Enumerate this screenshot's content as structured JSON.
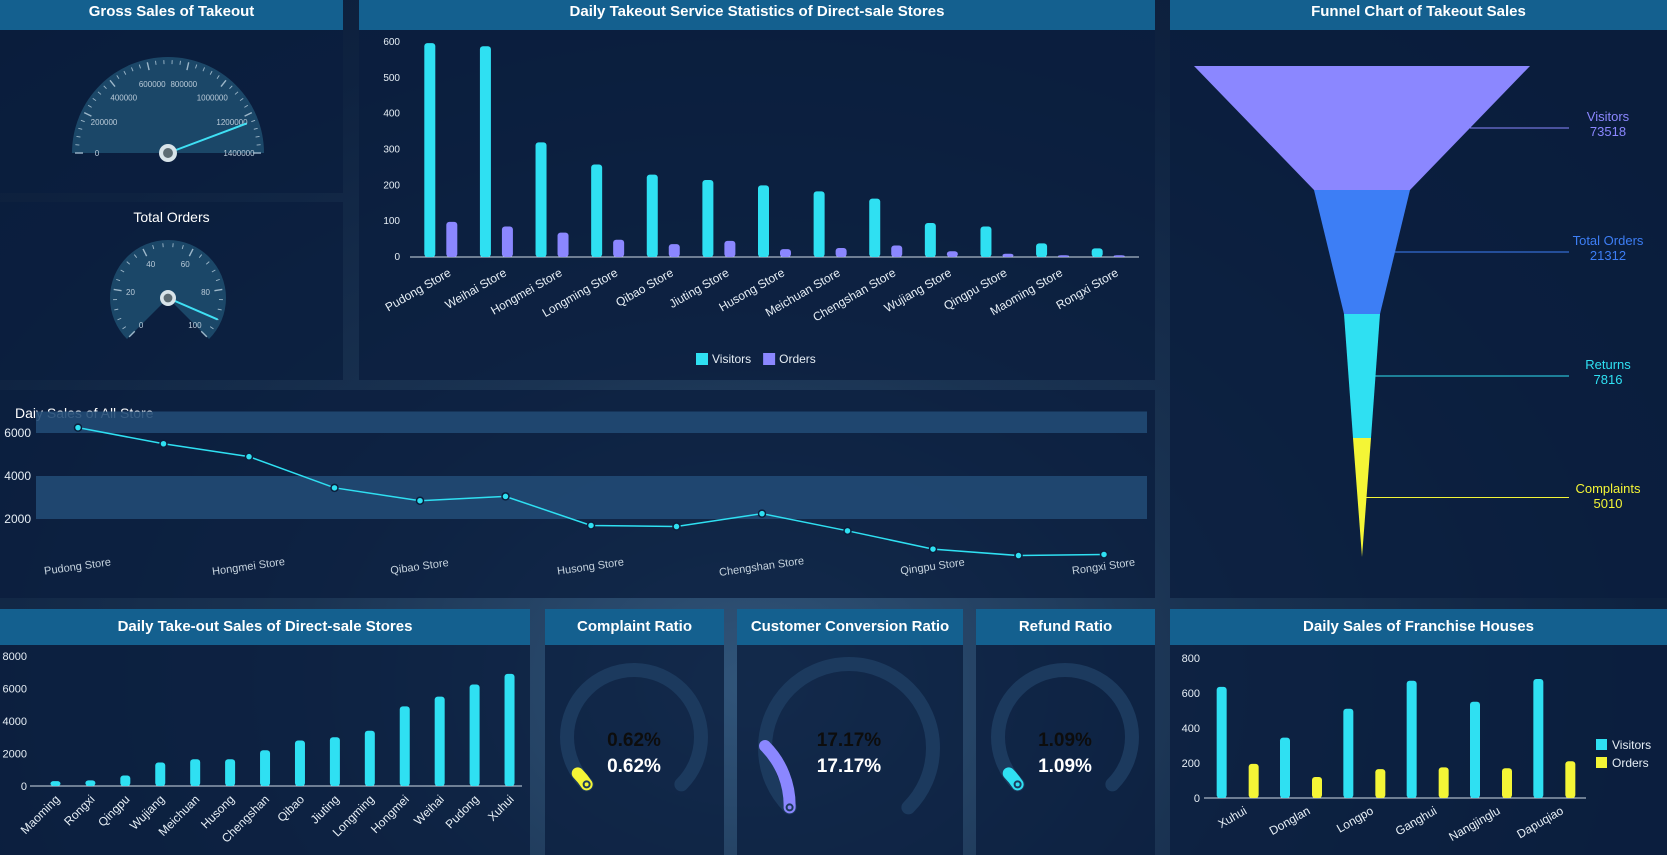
{
  "panels": {
    "gross_sales": {
      "title": "Gross Sales of Takeout"
    },
    "total_orders": {
      "title": "Total Orders"
    },
    "daily_stats": {
      "title": "Daily Takeout Service Statistics of Direct-sale Stores"
    },
    "funnel": {
      "title": "Funnel Chart of Takeout Sales"
    },
    "daily_all": {
      "title": "Daiy Sales of All Store"
    },
    "takeout_sales": {
      "title": "Daily Take-out Sales of Direct-sale Stores"
    },
    "complaint": {
      "title": "Complaint Ratio"
    },
    "conversion": {
      "title": "Customer Conversion Ratio"
    },
    "refund": {
      "title": "Refund Ratio"
    },
    "franchise": {
      "title": "Daily Sales of Franchise Houses"
    }
  },
  "colors": {
    "cyan": "#2fe0f2",
    "purple": "#8b87ff",
    "blue": "#3d7ef5",
    "yellow": "#f4f536",
    "panel": "#0b1e3c",
    "header": "#14608f"
  },
  "chart_data": [
    {
      "id": "gross_sales_gauge",
      "type": "gauge",
      "min": 0,
      "max": 1400000,
      "ticks": [
        "0",
        "200000",
        "400000",
        "600000",
        "800000",
        "1000000",
        "1200000",
        "1400000"
      ],
      "value": 1240000
    },
    {
      "id": "total_orders_gauge",
      "type": "gauge",
      "min": 0,
      "max": 100,
      "ticks": [
        "0",
        "20",
        "40",
        "60",
        "80",
        "100"
      ],
      "value": 92
    },
    {
      "id": "daily_service_stats",
      "type": "bar",
      "categories": [
        "Pudong Store",
        "Weihai Store",
        "Hongmei Store",
        "Longming Store",
        "Qibao Store",
        "Jiuting Store",
        "Husong Store",
        "Meichuan Store",
        "Chengshan Store",
        "Wujiang Store",
        "Qingpu Store",
        "Maoming Store",
        "Rongxi Store"
      ],
      "series": [
        {
          "name": "Visitors",
          "color": "#2fe0f2",
          "values": [
            597,
            588,
            320,
            258,
            230,
            215,
            200,
            183,
            163,
            95,
            85,
            38,
            24
          ]
        },
        {
          "name": "Orders",
          "color": "#8b87ff",
          "values": [
            98,
            85,
            68,
            48,
            36,
            45,
            22,
            25,
            32,
            16,
            9,
            5,
            5
          ]
        }
      ],
      "yticks": [
        "0",
        "100",
        "200",
        "300",
        "400",
        "500",
        "600"
      ],
      "ylim": [
        0,
        600
      ],
      "legend": "bottom-center"
    },
    {
      "id": "funnel",
      "type": "funnel",
      "stages": [
        {
          "name": "Visitors",
          "value": "73518",
          "color": "#8b87ff"
        },
        {
          "name": "Total Orders",
          "value": "21312",
          "color": "#3d7ef5"
        },
        {
          "name": "Returns",
          "value": "7816",
          "color": "#2fe0f2"
        },
        {
          "name": "Complaints",
          "value": "5010",
          "color": "#f4f536"
        }
      ]
    },
    {
      "id": "daily_sales_all",
      "type": "line",
      "x": [
        "Pudong Store",
        "Weihai Store",
        "Hongmei Store",
        "Longming Store",
        "Qibao Store",
        "Jiuting Store",
        "Husong Store",
        "Meichuan Store",
        "Chengshan Store",
        "Wujiang Store",
        "Qingpu Store",
        "Maoming Store",
        "Rongxi Store"
      ],
      "xtick_labels": [
        "Pudong Store",
        "",
        "Hongmei Store",
        "",
        "Qibao Store",
        "",
        "Husong Store",
        "",
        "Chengshan Store",
        "",
        "Qingpu Store",
        "",
        "Rongxi Store"
      ],
      "values": [
        6250,
        5500,
        4900,
        3450,
        2850,
        3050,
        1700,
        1650,
        2250,
        1450,
        600,
        300,
        350
      ],
      "yticks": [
        "2000",
        "4000",
        "6000"
      ],
      "ylim": [
        -1000,
        7000
      ],
      "bands": [
        [
          2000,
          4000
        ],
        [
          6000,
          7000
        ]
      ],
      "color": "#2fe0f2"
    },
    {
      "id": "takeout_sales",
      "type": "bar",
      "categories": [
        "Maoming",
        "Rongxi",
        "Qingpu",
        "Wujiang",
        "Meichuan",
        "Husong",
        "Chengshan",
        "Qibao",
        "Jiuting",
        "Longming",
        "Hongmei",
        "Weihai",
        "Pudong",
        "Xuhui"
      ],
      "values": [
        300,
        350,
        650,
        1450,
        1650,
        1650,
        2200,
        2800,
        3000,
        3400,
        4900,
        5500,
        6250,
        6900
      ],
      "yticks": [
        "0",
        "2000",
        "4000",
        "6000",
        "8000"
      ],
      "ylim": [
        0,
        8000
      ],
      "color": "#2fe0f2"
    },
    {
      "id": "complaint_ratio",
      "type": "gauge",
      "value": "0.62%",
      "fraction": 0.0062,
      "color": "#f4f536"
    },
    {
      "id": "conversion_ratio",
      "type": "gauge",
      "value": "17.17%",
      "fraction": 0.1717,
      "color": "#8b87ff"
    },
    {
      "id": "refund_ratio",
      "type": "gauge",
      "value": "1.09%",
      "fraction": 0.0109,
      "color": "#2fe0f2"
    },
    {
      "id": "franchise_sales",
      "type": "bar",
      "categories": [
        "Xuhui",
        "Donglan",
        "Longpo",
        "Ganghui",
        "Nangjinglu",
        "Dapuqiao"
      ],
      "series": [
        {
          "name": "Visitors",
          "color": "#2fe0f2",
          "values": [
            635,
            345,
            510,
            670,
            550,
            680
          ]
        },
        {
          "name": "Orders",
          "color": "#f4f536",
          "values": [
            195,
            120,
            165,
            175,
            170,
            210
          ]
        }
      ],
      "yticks": [
        "0",
        "200",
        "400",
        "600",
        "800"
      ],
      "ylim": [
        0,
        800
      ],
      "legend": "right"
    }
  ]
}
